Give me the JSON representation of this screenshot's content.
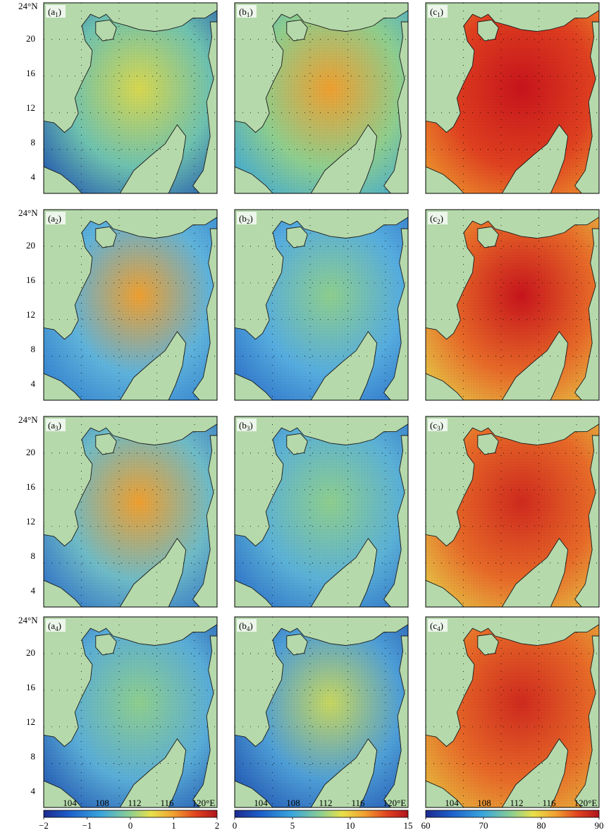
{
  "panels": [
    {
      "id": "a1",
      "letter": "a",
      "sub": "1",
      "col": 0,
      "row": 0
    },
    {
      "id": "b1",
      "letter": "b",
      "sub": "1",
      "col": 1,
      "row": 0
    },
    {
      "id": "c1",
      "letter": "c",
      "sub": "1",
      "col": 2,
      "row": 0
    },
    {
      "id": "a2",
      "letter": "a",
      "sub": "2",
      "col": 0,
      "row": 1
    },
    {
      "id": "b2",
      "letter": "b",
      "sub": "2",
      "col": 1,
      "row": 1
    },
    {
      "id": "c2",
      "letter": "c",
      "sub": "2",
      "col": 2,
      "row": 1
    },
    {
      "id": "a3",
      "letter": "a",
      "sub": "3",
      "col": 0,
      "row": 2
    },
    {
      "id": "b3",
      "letter": "b",
      "sub": "3",
      "col": 1,
      "row": 2
    },
    {
      "id": "c3",
      "letter": "c",
      "sub": "3",
      "col": 2,
      "row": 2
    },
    {
      "id": "a4",
      "letter": "a",
      "sub": "4",
      "col": 0,
      "row": 3
    },
    {
      "id": "b4",
      "letter": "b",
      "sub": "4",
      "col": 1,
      "row": 3
    },
    {
      "id": "c4",
      "letter": "c",
      "sub": "4",
      "col": 2,
      "row": 3
    }
  ],
  "lat_ticks": [
    "20",
    "16",
    "12",
    "8",
    "4"
  ],
  "lat_top_label": "24°N",
  "lon_ticks": [
    "104",
    "108",
    "112",
    "116"
  ],
  "lon_last_label": "120°E",
  "colorbars": [
    {
      "id": "cb-a",
      "ticks": [
        "−2",
        "−1",
        "0",
        "1",
        "2"
      ],
      "min": -2,
      "max": 2
    },
    {
      "id": "cb-b",
      "ticks": [
        "0",
        "5",
        "10",
        "15"
      ],
      "min": 0,
      "max": 15
    },
    {
      "id": "cb-c",
      "ticks": [
        "60",
        "70",
        "80",
        "90"
      ],
      "min": 60,
      "max": 90
    }
  ],
  "colors": {
    "land": "#b5d9ab",
    "coast": "#1a1a1a",
    "colormap": [
      "#1b2a8f",
      "#1d5fc9",
      "#3aa6dc",
      "#8fcf8f",
      "#e8e04a",
      "#f0a030",
      "#e04020",
      "#b0141c"
    ]
  }
}
